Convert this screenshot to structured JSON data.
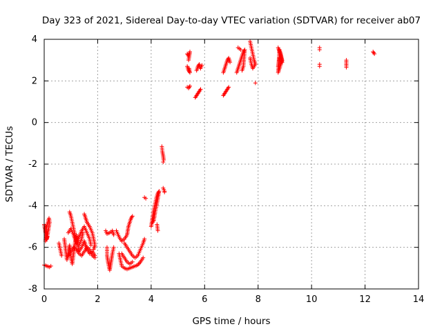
{
  "chart_data": {
    "type": "scatter",
    "title": "Day 323 of 2021, Sidereal Day-to-day VTEC variation (SDTVAR) for receiver ab07",
    "xlabel": "GPS time / hours",
    "ylabel": "SDTVAR / TECUs",
    "xlim": [
      0,
      14
    ],
    "ylim": [
      -8,
      4
    ],
    "xticks": [
      "0",
      "2",
      "4",
      "6",
      "8",
      "10",
      "12",
      "14"
    ],
    "yticks": [
      "-8",
      "-6",
      "-4",
      "-2",
      "0",
      "2",
      "4"
    ],
    "grid": true,
    "marker": "plus",
    "color": "#ff0000",
    "series": [
      {
        "name": "ab07",
        "tracks": [
          [
            [
              0.0,
              -4.9
            ],
            [
              0.05,
              -5.3
            ],
            [
              0.1,
              -5.6
            ],
            [
              0.15,
              -5.2
            ],
            [
              0.2,
              -4.8
            ],
            [
              0.18,
              -4.6
            ],
            [
              0.1,
              -5.0
            ],
            [
              0.05,
              -5.7
            ],
            [
              0.12,
              -5.5
            ]
          ],
          [
            [
              0.0,
              -6.85
            ],
            [
              0.1,
              -6.9
            ],
            [
              0.2,
              -6.95
            ],
            [
              0.25,
              -6.9
            ]
          ],
          [
            [
              0.55,
              -5.8
            ],
            [
              0.6,
              -6.1
            ],
            [
              0.65,
              -6.4
            ]
          ],
          [
            [
              0.75,
              -5.6
            ],
            [
              0.8,
              -6.1
            ],
            [
              0.85,
              -6.6
            ],
            [
              0.9,
              -6.3
            ],
            [
              0.95,
              -5.9
            ],
            [
              1.0,
              -6.5
            ],
            [
              1.05,
              -6.8
            ],
            [
              1.1,
              -6.3
            ],
            [
              1.15,
              -5.8
            ],
            [
              1.2,
              -5.4
            ],
            [
              1.25,
              -5.9
            ],
            [
              1.3,
              -6.2
            ],
            [
              1.4,
              -6.0
            ],
            [
              1.5,
              -5.7
            ],
            [
              1.6,
              -6.1
            ],
            [
              1.7,
              -6.3
            ],
            [
              1.8,
              -6.2
            ],
            [
              1.9,
              -6.4
            ]
          ],
          [
            [
              0.9,
              -5.3
            ],
            [
              1.0,
              -5.1
            ],
            [
              1.1,
              -5.4
            ],
            [
              1.2,
              -5.8
            ],
            [
              1.3,
              -5.5
            ],
            [
              1.4,
              -5.2
            ],
            [
              1.5,
              -5.0
            ],
            [
              1.6,
              -5.3
            ],
            [
              1.7,
              -5.6
            ],
            [
              1.75,
              -5.9
            ]
          ],
          [
            [
              0.95,
              -4.3
            ],
            [
              1.0,
              -4.5
            ],
            [
              1.05,
              -4.8
            ],
            [
              1.1,
              -5.1
            ],
            [
              1.15,
              -5.4
            ],
            [
              1.2,
              -5.7
            ],
            [
              1.3,
              -5.9
            ],
            [
              1.4,
              -5.6
            ],
            [
              1.45,
              -5.3
            ]
          ],
          [
            [
              1.5,
              -4.4
            ],
            [
              1.55,
              -4.6
            ],
            [
              1.6,
              -4.8
            ],
            [
              1.7,
              -5.0
            ],
            [
              1.8,
              -5.3
            ],
            [
              1.85,
              -5.6
            ],
            [
              1.9,
              -5.9
            ],
            [
              1.85,
              -6.1
            ]
          ],
          [
            [
              0.9,
              -6.4
            ],
            [
              1.0,
              -6.2
            ],
            [
              1.1,
              -6.0
            ],
            [
              1.2,
              -6.1
            ],
            [
              1.3,
              -6.3
            ],
            [
              1.4,
              -6.4
            ],
            [
              1.5,
              -6.2
            ],
            [
              1.6,
              -6.0
            ],
            [
              1.7,
              -6.1
            ],
            [
              1.8,
              -6.4
            ],
            [
              1.9,
              -6.5
            ]
          ],
          [
            [
              2.3,
              -5.2
            ],
            [
              2.35,
              -5.35
            ],
            [
              2.45,
              -5.3
            ],
            [
              2.55,
              -5.2
            ],
            [
              2.6,
              -5.4
            ]
          ],
          [
            [
              2.35,
              -6.0
            ],
            [
              2.35,
              -6.4
            ],
            [
              2.4,
              -6.8
            ],
            [
              2.45,
              -7.1
            ],
            [
              2.5,
              -6.7
            ],
            [
              2.55,
              -6.3
            ],
            [
              2.6,
              -6.0
            ]
          ],
          [
            [
              2.7,
              -5.2
            ],
            [
              2.8,
              -5.5
            ],
            [
              2.9,
              -5.7
            ],
            [
              3.0,
              -5.6
            ],
            [
              3.1,
              -5.4
            ],
            [
              3.15,
              -5.0
            ],
            [
              3.2,
              -4.8
            ],
            [
              3.25,
              -4.6
            ],
            [
              3.3,
              -4.5
            ]
          ],
          [
            [
              2.8,
              -6.3
            ],
            [
              2.85,
              -6.6
            ],
            [
              2.9,
              -6.9
            ],
            [
              3.0,
              -7.0
            ],
            [
              3.1,
              -7.05
            ],
            [
              3.2,
              -7.0
            ],
            [
              3.3,
              -6.95
            ],
            [
              3.4,
              -6.9
            ],
            [
              3.5,
              -6.85
            ],
            [
              3.6,
              -6.7
            ],
            [
              3.7,
              -6.5
            ]
          ],
          [
            [
              3.0,
              -5.8
            ],
            [
              3.1,
              -6.0
            ],
            [
              3.2,
              -6.2
            ],
            [
              3.3,
              -6.4
            ],
            [
              3.4,
              -6.5
            ],
            [
              3.5,
              -6.4
            ],
            [
              3.6,
              -6.1
            ],
            [
              3.7,
              -5.8
            ],
            [
              3.75,
              -5.6
            ]
          ],
          [
            [
              2.9,
              -6.3
            ],
            [
              3.0,
              -6.5
            ],
            [
              3.1,
              -6.7
            ],
            [
              3.2,
              -6.8
            ],
            [
              3.3,
              -6.7
            ]
          ],
          [
            [
              3.75,
              -3.6
            ],
            [
              3.8,
              -3.65
            ]
          ],
          [
            [
              4.0,
              -5.0
            ],
            [
              4.05,
              -4.6
            ],
            [
              4.1,
              -4.2
            ],
            [
              4.15,
              -3.9
            ],
            [
              4.2,
              -3.6
            ],
            [
              4.25,
              -3.4
            ],
            [
              4.3,
              -3.3
            ],
            [
              4.2,
              -4.0
            ],
            [
              4.15,
              -4.3
            ],
            [
              4.1,
              -4.7
            ],
            [
              4.05,
              -4.8
            ]
          ],
          [
            [
              4.25,
              -5.2
            ],
            [
              4.22,
              -4.9
            ]
          ],
          [
            [
              4.4,
              -1.15
            ],
            [
              4.42,
              -1.4
            ],
            [
              4.45,
              -1.6
            ],
            [
              4.47,
              -1.8
            ],
            [
              4.45,
              -1.9
            ]
          ],
          [
            [
              4.45,
              -3.15
            ],
            [
              4.5,
              -3.3
            ],
            [
              4.5,
              -3.35
            ]
          ],
          [
            [
              5.35,
              3.3
            ],
            [
              5.4,
              3.2
            ],
            [
              5.45,
              3.4
            ],
            [
              5.4,
              3.0
            ]
          ],
          [
            [
              5.35,
              2.7
            ],
            [
              5.4,
              2.5
            ],
            [
              5.45,
              2.4
            ],
            [
              5.42,
              2.6
            ]
          ],
          [
            [
              5.35,
              1.7
            ],
            [
              5.4,
              1.65
            ],
            [
              5.45,
              1.75
            ]
          ],
          [
            [
              5.7,
              2.5
            ],
            [
              5.75,
              2.7
            ],
            [
              5.8,
              2.8
            ],
            [
              5.85,
              2.6
            ],
            [
              5.9,
              2.75
            ]
          ],
          [
            [
              5.65,
              1.2
            ],
            [
              5.7,
              1.3
            ],
            [
              5.75,
              1.4
            ],
            [
              5.8,
              1.5
            ],
            [
              5.85,
              1.6
            ]
          ],
          [
            [
              6.7,
              2.4
            ],
            [
              6.75,
              2.6
            ],
            [
              6.8,
              2.8
            ],
            [
              6.85,
              3.0
            ],
            [
              6.9,
              3.1
            ],
            [
              6.95,
              2.9
            ]
          ],
          [
            [
              6.7,
              1.3
            ],
            [
              6.75,
              1.4
            ],
            [
              6.8,
              1.5
            ],
            [
              6.85,
              1.6
            ],
            [
              6.9,
              1.7
            ]
          ],
          [
            [
              7.2,
              2.4
            ],
            [
              7.25,
              2.6
            ],
            [
              7.3,
              2.8
            ],
            [
              7.35,
              3.0
            ],
            [
              7.4,
              3.2
            ],
            [
              7.45,
              3.4
            ],
            [
              7.5,
              3.5
            ],
            [
              7.45,
              2.7
            ],
            [
              7.4,
              2.5
            ]
          ],
          [
            [
              7.25,
              3.6
            ],
            [
              7.3,
              3.55
            ],
            [
              7.35,
              3.5
            ]
          ],
          [
            [
              7.7,
              3.9
            ],
            [
              7.75,
              3.6
            ],
            [
              7.8,
              3.3
            ],
            [
              7.85,
              3.0
            ],
            [
              7.9,
              2.8
            ],
            [
              7.8,
              2.6
            ],
            [
              7.75,
              2.8
            ],
            [
              7.7,
              3.1
            ]
          ],
          [
            [
              7.9,
              1.9
            ]
          ],
          [
            [
              8.75,
              3.6
            ],
            [
              8.8,
              3.4
            ],
            [
              8.85,
              3.2
            ],
            [
              8.9,
              3.0
            ],
            [
              8.85,
              2.8
            ],
            [
              8.8,
              2.6
            ],
            [
              8.75,
              2.4
            ],
            [
              8.8,
              3.5
            ],
            [
              8.85,
              3.3
            ],
            [
              8.9,
              2.9
            ],
            [
              8.8,
              3.1
            ],
            [
              8.75,
              2.7
            ]
          ],
          [
            [
              10.3,
              3.6
            ],
            [
              10.3,
              3.5
            ]
          ],
          [
            [
              10.3,
              2.8
            ],
            [
              10.3,
              2.7
            ]
          ],
          [
            [
              11.3,
              3.0
            ],
            [
              11.3,
              2.65
            ]
          ],
          [
            [
              12.3,
              3.4
            ],
            [
              12.35,
              3.3
            ]
          ]
        ]
      }
    ]
  }
}
